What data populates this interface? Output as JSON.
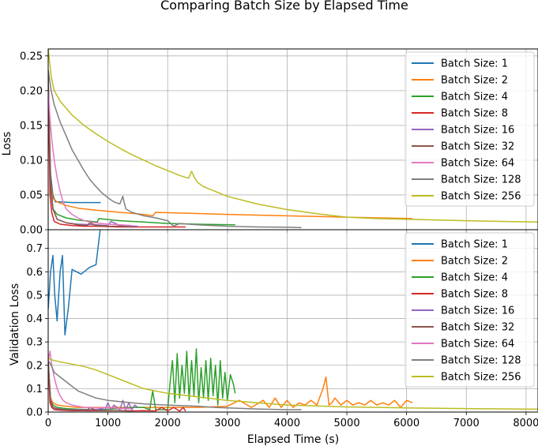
{
  "figure": {
    "title": "Comparing Batch Size by Elapsed Time"
  },
  "chart_data": [
    {
      "type": "line",
      "panel": "top",
      "title": "",
      "xlabel": "",
      "ylabel": "Loss",
      "xlim": [
        0,
        8200
      ],
      "ylim": [
        0,
        0.26
      ],
      "xticks": [
        0,
        1000,
        2000,
        3000,
        4000,
        5000,
        6000,
        7000,
        8000
      ],
      "xtick_labels": [],
      "yticks": [
        0.0,
        0.05,
        0.1,
        0.15,
        0.2,
        0.25
      ],
      "ytick_labels": [
        "0.00",
        "0.05",
        "0.10",
        "0.15",
        "0.20",
        "0.25"
      ],
      "grid": true,
      "legend_position": "upper right",
      "series": [
        {
          "name": "Batch Size: 1",
          "color": "#1f77b4",
          "x": [
            0,
            40,
            80,
            120,
            200,
            400,
            600,
            880
          ],
          "y": [
            0.2,
            0.08,
            0.05,
            0.04,
            0.04,
            0.039,
            0.039,
            0.039
          ]
        },
        {
          "name": "Batch Size: 2",
          "color": "#ff7f0e",
          "x": [
            0,
            40,
            80,
            150,
            300,
            500,
            800,
            1200,
            1600,
            1750,
            1800,
            2200,
            3000,
            4000,
            5000,
            6100
          ],
          "y": [
            0.22,
            0.07,
            0.045,
            0.04,
            0.035,
            0.031,
            0.028,
            0.025,
            0.022,
            0.02,
            0.025,
            0.024,
            0.022,
            0.02,
            0.018,
            0.016
          ]
        },
        {
          "name": "Batch Size: 4",
          "color": "#2ca02c",
          "x": [
            0,
            40,
            80,
            150,
            300,
            500,
            700,
            820,
            850,
            1200,
            1600,
            2000,
            2500,
            3130
          ],
          "y": [
            0.22,
            0.06,
            0.03,
            0.022,
            0.017,
            0.014,
            0.012,
            0.011,
            0.016,
            0.013,
            0.011,
            0.009,
            0.008,
            0.007
          ]
        },
        {
          "name": "Batch Size: 8",
          "color": "#d62728",
          "x": [
            0,
            30,
            60,
            100,
            200,
            400,
            600,
            800,
            1200,
            1600,
            2000,
            2300
          ],
          "y": [
            0.22,
            0.05,
            0.025,
            0.012,
            0.008,
            0.006,
            0.005,
            0.005,
            0.004,
            0.004,
            0.004,
            0.004
          ]
        },
        {
          "name": "Batch Size: 16",
          "color": "#9467bd",
          "x": [
            0,
            40,
            80,
            150,
            300,
            500,
            800,
            1000,
            1050,
            1200,
            1500
          ],
          "y": [
            0.22,
            0.07,
            0.03,
            0.015,
            0.01,
            0.008,
            0.007,
            0.006,
            0.012,
            0.006,
            0.005
          ]
        },
        {
          "name": "Batch Size: 32",
          "color": "#8c564b",
          "x": [
            0,
            40,
            80,
            150,
            300,
            500,
            650,
            700,
            800,
            1000,
            1200,
            1400
          ],
          "y": [
            0.22,
            0.07,
            0.03,
            0.015,
            0.01,
            0.007,
            0.006,
            0.01,
            0.006,
            0.005,
            0.005,
            0.004
          ]
        },
        {
          "name": "Batch Size: 64",
          "color": "#e377c2",
          "x": [
            0,
            30,
            60,
            100,
            150,
            200,
            250,
            300,
            400,
            500,
            600,
            700,
            800,
            1000,
            1200,
            1400
          ],
          "y": [
            0.2,
            0.16,
            0.13,
            0.1,
            0.075,
            0.055,
            0.04,
            0.03,
            0.022,
            0.017,
            0.013,
            0.011,
            0.01,
            0.008,
            0.007,
            0.006
          ]
        },
        {
          "name": "Batch Size: 128",
          "color": "#7f7f7f",
          "x": [
            0,
            50,
            100,
            200,
            300,
            400,
            500,
            600,
            700,
            800,
            900,
            1000,
            1100,
            1200,
            1250,
            1270,
            1300,
            1400,
            1600,
            1800,
            2000,
            2100,
            2200,
            2500,
            3000,
            3500,
            4000,
            4240
          ],
          "y": [
            0.23,
            0.2,
            0.18,
            0.155,
            0.135,
            0.115,
            0.1,
            0.085,
            0.072,
            0.062,
            0.053,
            0.046,
            0.04,
            0.037,
            0.048,
            0.04,
            0.03,
            0.025,
            0.02,
            0.017,
            0.013,
            0.005,
            0.009,
            0.007,
            0.005,
            0.004,
            0.0035,
            0.003
          ]
        },
        {
          "name": "Batch Size: 256",
          "color": "#bcbd22",
          "x": [
            0,
            50,
            100,
            200,
            400,
            600,
            800,
            1000,
            1200,
            1400,
            1600,
            1800,
            2000,
            2200,
            2350,
            2400,
            2450,
            2500,
            2600,
            2800,
            3000,
            3500,
            4000,
            4500,
            5000,
            5500,
            6000,
            7000,
            8200
          ],
          "y": [
            0.26,
            0.22,
            0.2,
            0.185,
            0.165,
            0.15,
            0.138,
            0.127,
            0.117,
            0.108,
            0.1,
            0.092,
            0.085,
            0.078,
            0.074,
            0.084,
            0.075,
            0.068,
            0.062,
            0.055,
            0.048,
            0.037,
            0.029,
            0.023,
            0.018,
            0.016,
            0.015,
            0.013,
            0.011
          ]
        }
      ]
    },
    {
      "type": "line",
      "panel": "bottom",
      "title": "",
      "xlabel": "Elapsed Time (s)",
      "ylabel": "Validation Loss",
      "xlim": [
        0,
        8200
      ],
      "ylim": [
        0,
        0.78
      ],
      "xticks": [
        0,
        1000,
        2000,
        3000,
        4000,
        5000,
        6000,
        7000,
        8000
      ],
      "xtick_labels": [
        "0",
        "1000",
        "2000",
        "3000",
        "4000",
        "5000",
        "6000",
        "7000",
        "8000"
      ],
      "yticks": [
        0.0,
        0.1,
        0.2,
        0.3,
        0.4,
        0.5,
        0.6,
        0.7
      ],
      "ytick_labels": [
        "0.0",
        "0.1",
        "0.2",
        "0.3",
        "0.4",
        "0.5",
        "0.6",
        "0.7"
      ],
      "grid": true,
      "legend_position": "upper right",
      "series": [
        {
          "name": "Batch Size: 1",
          "color": "#1f77b4",
          "x": [
            0,
            40,
            80,
            110,
            150,
            200,
            240,
            280,
            340,
            400,
            550,
            600,
            700,
            800,
            880
          ],
          "y": [
            0.44,
            0.6,
            0.67,
            0.5,
            0.39,
            0.6,
            0.67,
            0.33,
            0.45,
            0.61,
            0.59,
            0.6,
            0.62,
            0.63,
            0.8
          ]
        },
        {
          "name": "Batch Size: 2",
          "color": "#ff7f0e",
          "x": [
            0,
            40,
            80,
            150,
            300,
            500,
            800,
            1200,
            1600,
            2000,
            2500,
            3000,
            3200,
            3400,
            3600,
            3700,
            3800,
            3900,
            4000,
            4100,
            4200,
            4300,
            4400,
            4500,
            4600,
            4650,
            4700,
            4750,
            4800,
            4900,
            5000,
            5100,
            5200,
            5300,
            5400,
            5500,
            5600,
            5700,
            5800,
            5900,
            6000,
            6100
          ],
          "y": [
            0.2,
            0.06,
            0.04,
            0.03,
            0.025,
            0.02,
            0.02,
            0.02,
            0.02,
            0.02,
            0.02,
            0.025,
            0.05,
            0.02,
            0.05,
            0.02,
            0.06,
            0.02,
            0.05,
            0.02,
            0.04,
            0.03,
            0.05,
            0.03,
            0.1,
            0.15,
            0.03,
            0.04,
            0.06,
            0.03,
            0.05,
            0.03,
            0.04,
            0.03,
            0.05,
            0.03,
            0.04,
            0.03,
            0.05,
            0.02,
            0.05,
            0.04
          ]
        },
        {
          "name": "Batch Size: 4",
          "color": "#2ca02c",
          "x": [
            0,
            40,
            80,
            150,
            300,
            500,
            800,
            1000,
            1200,
            1400,
            1600,
            1700,
            1750,
            1800,
            2000,
            2050,
            2080,
            2120,
            2160,
            2200,
            2240,
            2280,
            2320,
            2360,
            2400,
            2440,
            2480,
            2520,
            2560,
            2600,
            2640,
            2680,
            2720,
            2760,
            2800,
            2840,
            2880,
            2920,
            2960,
            3000,
            3050,
            3100,
            3130
          ],
          "y": [
            0.2,
            0.05,
            0.03,
            0.02,
            0.015,
            0.012,
            0.01,
            0.012,
            0.015,
            0.02,
            0.02,
            0.01,
            0.09,
            0.01,
            0.01,
            0.15,
            0.22,
            0.04,
            0.25,
            0.06,
            0.2,
            0.08,
            0.26,
            0.05,
            0.22,
            0.07,
            0.27,
            0.04,
            0.19,
            0.06,
            0.22,
            0.05,
            0.23,
            0.07,
            0.2,
            0.03,
            0.22,
            0.06,
            0.17,
            0.05,
            0.16,
            0.12,
            0.08
          ]
        },
        {
          "name": "Batch Size: 8",
          "color": "#d62728",
          "x": [
            0,
            30,
            60,
            100,
            200,
            400,
            600,
            800,
            1000,
            1200,
            1400,
            1600,
            1800,
            1900,
            2000,
            2100,
            2200,
            2260,
            2300
          ],
          "y": [
            0.22,
            0.04,
            0.02,
            0.01,
            0.008,
            0.006,
            0.006,
            0.006,
            0.006,
            0.006,
            0.005,
            0.006,
            0.005,
            0.02,
            0.005,
            0.02,
            0.004,
            0.02,
            0.004
          ]
        },
        {
          "name": "Batch Size: 16",
          "color": "#9467bd",
          "x": [
            0,
            40,
            80,
            150,
            300,
            500,
            800,
            900,
            950,
            1000,
            1050,
            1100,
            1200,
            1250,
            1300,
            1350,
            1400,
            1450,
            1500
          ],
          "y": [
            0.22,
            0.05,
            0.02,
            0.015,
            0.01,
            0.01,
            0.01,
            0.015,
            0.01,
            0.04,
            0.01,
            0.03,
            0.01,
            0.05,
            0.01,
            0.04,
            0.01,
            0.03,
            0.02
          ]
        },
        {
          "name": "Batch Size: 32",
          "color": "#8c564b",
          "x": [
            0,
            40,
            80,
            150,
            300,
            500,
            650,
            700,
            800,
            1000,
            1200,
            1400
          ],
          "y": [
            0.22,
            0.05,
            0.02,
            0.012,
            0.01,
            0.008,
            0.007,
            0.02,
            0.007,
            0.006,
            0.006,
            0.005
          ]
        },
        {
          "name": "Batch Size: 64",
          "color": "#e377c2",
          "x": [
            0,
            30,
            60,
            100,
            150,
            200,
            250,
            300,
            400,
            500,
            600,
            700,
            800,
            1000,
            1200,
            1400
          ],
          "y": [
            0.22,
            0.26,
            0.2,
            0.15,
            0.1,
            0.07,
            0.05,
            0.04,
            0.03,
            0.025,
            0.02,
            0.02,
            0.018,
            0.02,
            0.015,
            0.015
          ]
        },
        {
          "name": "Batch Size: 128",
          "color": "#7f7f7f",
          "x": [
            0,
            50,
            100,
            200,
            300,
            400,
            500,
            600,
            700,
            800,
            900,
            1000,
            1200,
            1400,
            1600,
            1800,
            2000,
            2200,
            2500,
            2800,
            3000,
            3500,
            4000,
            4240
          ],
          "y": [
            0.22,
            0.2,
            0.17,
            0.15,
            0.13,
            0.11,
            0.09,
            0.08,
            0.07,
            0.06,
            0.055,
            0.05,
            0.045,
            0.04,
            0.035,
            0.032,
            0.03,
            0.028,
            0.025,
            0.02,
            0.018,
            0.013,
            0.01,
            0.01
          ]
        },
        {
          "name": "Batch Size: 256",
          "color": "#bcbd22",
          "x": [
            0,
            100,
            200,
            400,
            600,
            800,
            1000,
            1200,
            1400,
            1600,
            1800,
            2000,
            2500,
            3000,
            3500,
            4000,
            5000,
            6000,
            7000,
            8200
          ],
          "y": [
            0.23,
            0.22,
            0.215,
            0.205,
            0.195,
            0.18,
            0.16,
            0.14,
            0.12,
            0.1,
            0.09,
            0.08,
            0.065,
            0.05,
            0.04,
            0.03,
            0.022,
            0.018,
            0.015,
            0.012
          ]
        }
      ]
    }
  ]
}
